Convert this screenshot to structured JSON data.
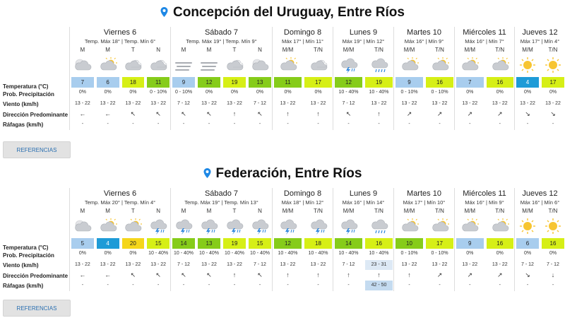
{
  "colors": {
    "pin": "#1e88e5",
    "temp_scale": {
      "4": "#1e9bd7",
      "5": "#a8cdee",
      "6": "#a8cdee",
      "7": "#a8cdee",
      "9": "#a8cdee",
      "10": "#86cc1a",
      "11": "#86cc1a",
      "12": "#86cc1a",
      "13": "#86cc1a",
      "14": "#86cc1a",
      "15": "#d6ef16",
      "16": "#d6ef16",
      "17": "#d6ef16",
      "18": "#d6ef16",
      "19": "#d6ef16",
      "20": "#f5d61a"
    }
  },
  "row_labels": [
    "Temperatura (°C)",
    "Prob. Precipitación",
    "Viento (km/h)",
    "Dirección Predominante",
    "Ráfagas (km/h)"
  ],
  "references_label": "REFERENCIAS",
  "locations": [
    {
      "title": "Concepción del Uruguay, Entre Ríos",
      "days": [
        {
          "name": "Viernes 6",
          "temps": "Temp. Máx 18° | Temp. Mín 6°",
          "slots": [
            {
              "period": "M",
              "icon": "night-cloudy-icon",
              "temp": "7",
              "prob": "0%",
              "wind": "13 - 22",
              "dir": "←",
              "gust": "-"
            },
            {
              "period": "M",
              "icon": "partly-cloudy-icon",
              "temp": "6",
              "prob": "0%",
              "wind": "13 - 22",
              "dir": "←",
              "gust": "-"
            },
            {
              "period": "T",
              "icon": "cloudy-icon",
              "temp": "18",
              "prob": "0%",
              "wind": "13 - 22",
              "dir": "↖",
              "gust": "-"
            },
            {
              "period": "N",
              "icon": "cloudy-icon",
              "temp": "11",
              "prob": "0 - 10%",
              "wind": "13 - 22",
              "dir": "↖",
              "gust": "-"
            }
          ]
        },
        {
          "name": "Sábado 7",
          "temps": "Temp. Máx 19° | Temp. Mín 9°",
          "slots": [
            {
              "period": "M",
              "icon": "fog-icon",
              "temp": "9",
              "prob": "0 - 10%",
              "wind": "7 - 12",
              "dir": "↖",
              "gust": "-"
            },
            {
              "period": "M",
              "icon": "fog-icon",
              "temp": "12",
              "prob": "0%",
              "wind": "13 - 22",
              "dir": "↖",
              "gust": "-"
            },
            {
              "period": "T",
              "icon": "cloudy-icon",
              "temp": "19",
              "prob": "0%",
              "wind": "13 - 22",
              "dir": "↑",
              "gust": "-"
            },
            {
              "period": "N",
              "icon": "night-cloudy-icon",
              "temp": "13",
              "prob": "0%",
              "wind": "7 - 12",
              "dir": "↖",
              "gust": "-"
            }
          ]
        },
        {
          "name": "Domingo 8",
          "temps": "Máx 17° | Mín 11°",
          "slots": [
            {
              "period": "M/M",
              "icon": "partly-cloudy-icon",
              "temp": "11",
              "prob": "0%",
              "wind": "13 - 22",
              "dir": "↑",
              "gust": "-"
            },
            {
              "period": "T/N",
              "icon": "cloudy-icon",
              "temp": "17",
              "prob": "0%",
              "wind": "13 - 22",
              "dir": "↑",
              "gust": "-"
            }
          ]
        },
        {
          "name": "Lunes 9",
          "temps": "Máx 19° | Mín 12°",
          "slots": [
            {
              "period": "M/M",
              "icon": "storm-icon",
              "temp": "12",
              "prob": "10 - 40%",
              "wind": "7 - 12",
              "dir": "↖",
              "gust": "-"
            },
            {
              "period": "T/N",
              "icon": "rain-icon",
              "temp": "19",
              "prob": "10 - 40%",
              "wind": "13 - 22",
              "dir": "↑",
              "gust": "-"
            }
          ]
        },
        {
          "name": "Martes 10",
          "temps": "Máx 16° | Mín 9°",
          "slots": [
            {
              "period": "M/M",
              "icon": "partly-cloudy-icon",
              "temp": "9",
              "prob": "0 - 10%",
              "wind": "13 - 22",
              "dir": "↗",
              "gust": "-"
            },
            {
              "period": "T/N",
              "icon": "partly-cloudy-icon",
              "temp": "16",
              "prob": "0 - 10%",
              "wind": "13 - 22",
              "dir": "↗",
              "gust": "-"
            }
          ]
        },
        {
          "name": "Miércoles 11",
          "temps": "Máx 16° | Mín 7°",
          "slots": [
            {
              "period": "M/M",
              "icon": "partly-cloudy-icon",
              "temp": "7",
              "prob": "0%",
              "wind": "13 - 22",
              "dir": "↗",
              "gust": "-"
            },
            {
              "period": "T/N",
              "icon": "partly-cloudy-icon",
              "temp": "16",
              "prob": "0%",
              "wind": "13 - 22",
              "dir": "↗",
              "gust": "-"
            }
          ]
        },
        {
          "name": "Jueves 12",
          "temps": "Máx 17° | Mín 4°",
          "slots": [
            {
              "period": "M/M",
              "icon": "sun-icon",
              "temp": "4",
              "prob": "0%",
              "wind": "13 - 22",
              "dir": "↘",
              "gust": "-"
            },
            {
              "period": "T/N",
              "icon": "sun-icon",
              "temp": "17",
              "prob": "0%",
              "wind": "13 - 22",
              "dir": "↘",
              "gust": "-"
            }
          ]
        }
      ]
    },
    {
      "title": "Federación, Entre Ríos",
      "days": [
        {
          "name": "Viernes 6",
          "temps": "Temp. Máx 20° | Temp. Mín 4°",
          "slots": [
            {
              "period": "M",
              "icon": "night-cloudy-icon",
              "temp": "5",
              "prob": "0%",
              "wind": "13 - 22",
              "dir": "←",
              "gust": "-"
            },
            {
              "period": "M",
              "icon": "partly-cloudy-icon",
              "temp": "4",
              "prob": "0%",
              "wind": "13 - 22",
              "dir": "←",
              "gust": "-"
            },
            {
              "period": "T",
              "icon": "partly-cloudy-icon",
              "temp": "20",
              "prob": "0%",
              "wind": "13 - 22",
              "dir": "↖",
              "gust": "-"
            },
            {
              "period": "N",
              "icon": "storm-icon",
              "temp": "15",
              "prob": "10 - 40%",
              "wind": "13 - 22",
              "dir": "↖",
              "gust": "-"
            }
          ]
        },
        {
          "name": "Sábado 7",
          "temps": "Temp. Máx 19° | Temp. Mín 13°",
          "slots": [
            {
              "period": "M",
              "icon": "storm-icon",
              "temp": "14",
              "prob": "10 - 40%",
              "wind": "7 - 12",
              "dir": "↖",
              "gust": "-"
            },
            {
              "period": "M",
              "icon": "storm-icon",
              "temp": "13",
              "prob": "10 - 40%",
              "wind": "13 - 22",
              "dir": "↖",
              "gust": "-"
            },
            {
              "period": "T",
              "icon": "storm-icon",
              "temp": "19",
              "prob": "10 - 40%",
              "wind": "13 - 22",
              "dir": "↑",
              "gust": "-"
            },
            {
              "period": "N",
              "icon": "storm-icon",
              "temp": "15",
              "prob": "10 - 40%",
              "wind": "7 - 12",
              "dir": "↖",
              "gust": "-"
            }
          ]
        },
        {
          "name": "Domingo 8",
          "temps": "Máx 18° | Mín 12°",
          "slots": [
            {
              "period": "M/M",
              "icon": "storm-icon",
              "temp": "12",
              "prob": "10 - 40%",
              "wind": "13 - 22",
              "dir": "↑",
              "gust": "-"
            },
            {
              "period": "T/N",
              "icon": "storm-icon",
              "temp": "18",
              "prob": "10 - 40%",
              "wind": "13 - 22",
              "dir": "↑",
              "gust": "-"
            }
          ]
        },
        {
          "name": "Lunes 9",
          "temps": "Máx 16° | Mín 14°",
          "slots": [
            {
              "period": "M/M",
              "icon": "storm-icon",
              "temp": "14",
              "prob": "10 - 40%",
              "wind": "7 - 12",
              "dir": "↑",
              "gust": "-"
            },
            {
              "period": "T/N",
              "icon": "rain-icon",
              "temp": "16",
              "prob": "10 - 40%",
              "wind": "23 - 31",
              "dir": "↑",
              "gust": "42 - 50",
              "highlight": true
            }
          ]
        },
        {
          "name": "Martes 10",
          "temps": "Máx 17° | Mín 10°",
          "slots": [
            {
              "period": "M/M",
              "icon": "partly-cloudy-icon",
              "temp": "10",
              "prob": "0 - 10%",
              "wind": "13 - 22",
              "dir": "↑",
              "gust": "-"
            },
            {
              "period": "T/N",
              "icon": "partly-cloudy-icon",
              "temp": "17",
              "prob": "0 - 10%",
              "wind": "13 - 22",
              "dir": "↗",
              "gust": "-"
            }
          ]
        },
        {
          "name": "Miércoles 11",
          "temps": "Máx 16° | Mín 9°",
          "slots": [
            {
              "period": "M/M",
              "icon": "partly-cloudy-icon",
              "temp": "9",
              "prob": "0%",
              "wind": "13 - 22",
              "dir": "↗",
              "gust": "-"
            },
            {
              "period": "T/N",
              "icon": "partly-cloudy-icon",
              "temp": "16",
              "prob": "0%",
              "wind": "13 - 22",
              "dir": "↗",
              "gust": "-"
            }
          ]
        },
        {
          "name": "Jueves 12",
          "temps": "Máx 16° | Mín 6°",
          "slots": [
            {
              "period": "M/M",
              "icon": "sun-icon",
              "temp": "6",
              "prob": "0%",
              "wind": "7 - 12",
              "dir": "↘",
              "gust": "-"
            },
            {
              "period": "T/N",
              "icon": "sun-icon",
              "temp": "16",
              "prob": "0%",
              "wind": "7 - 12",
              "dir": "↓",
              "gust": "-"
            }
          ]
        }
      ]
    }
  ]
}
